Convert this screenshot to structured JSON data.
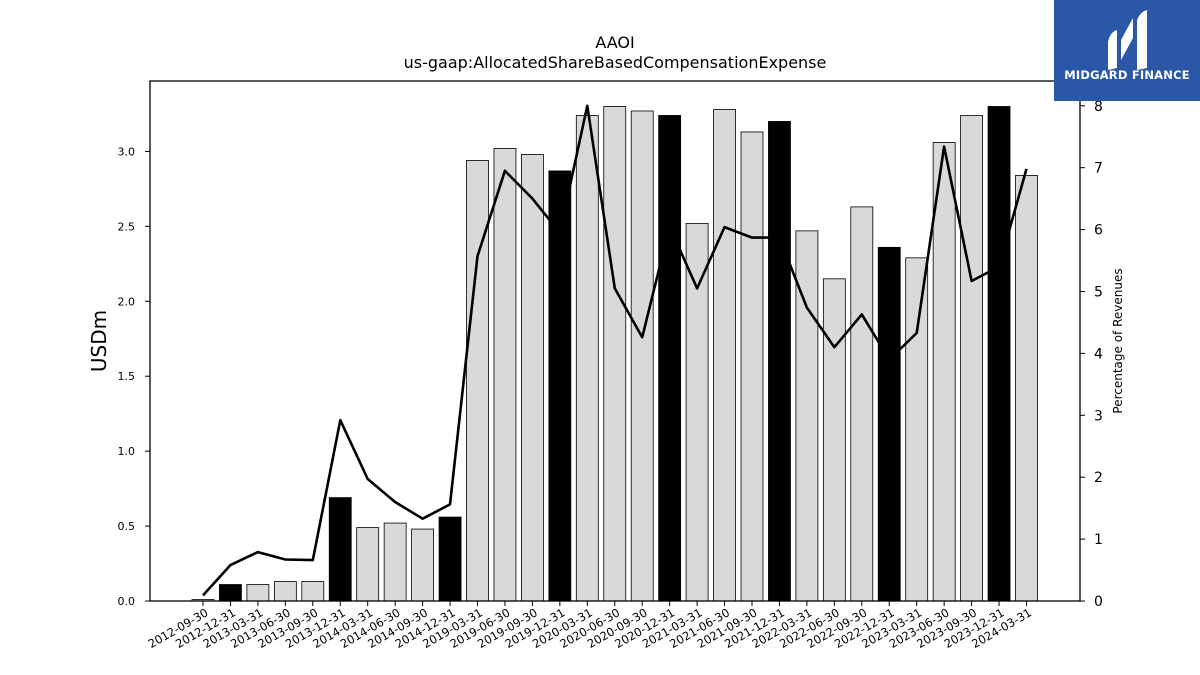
{
  "chart_data": {
    "type": "bar",
    "title": "AAOI",
    "subtitle": "us-gaap:AllocatedShareBasedCompensationExpense",
    "ylabel": "USDm",
    "y2label": "Percentage of Revenues",
    "ylim": [
      0,
      3.47
    ],
    "y2lim": [
      0,
      8.4
    ],
    "yticks": [
      "0.0",
      "0.5",
      "1.0",
      "1.5",
      "2.0",
      "2.5",
      "3.0"
    ],
    "y2ticks": [
      "0",
      "1",
      "2",
      "3",
      "4",
      "5",
      "6",
      "7",
      "8"
    ],
    "categories": [
      "2012-09-30",
      "2012-12-31",
      "2013-03-31",
      "2013-06-30",
      "2013-09-30",
      "2013-12-31",
      "2014-03-31",
      "2014-06-30",
      "2014-09-30",
      "2014-12-31",
      "2019-03-31",
      "2019-06-30",
      "2019-09-30",
      "2019-12-31",
      "2020-03-31",
      "2020-06-30",
      "2020-09-30",
      "2020-12-31",
      "2021-03-31",
      "2021-06-30",
      "2021-09-30",
      "2021-12-31",
      "2022-03-31",
      "2022-06-30",
      "2022-09-30",
      "2022-12-31",
      "2023-03-31",
      "2023-06-30",
      "2023-09-30",
      "2023-12-31",
      "2024-03-31"
    ],
    "series": [
      {
        "kind": "bar",
        "values": [
          0.01,
          0.11,
          0.11,
          0.13,
          0.13,
          0.69,
          0.49,
          0.52,
          0.48,
          0.56,
          2.94,
          3.02,
          2.98,
          2.87,
          3.24,
          3.3,
          3.27,
          3.24,
          2.52,
          3.28,
          3.13,
          3.2,
          2.47,
          2.15,
          2.63,
          2.36,
          2.29,
          3.06,
          3.24,
          3.3,
          2.84
        ],
        "highlight": [
          false,
          true,
          false,
          false,
          false,
          true,
          false,
          false,
          false,
          true,
          false,
          false,
          false,
          true,
          false,
          false,
          false,
          true,
          false,
          false,
          false,
          true,
          false,
          false,
          false,
          true,
          false,
          false,
          false,
          true,
          false
        ]
      },
      {
        "kind": "line",
        "axis": "right",
        "values": [
          0.09,
          0.58,
          0.79,
          0.67,
          0.66,
          2.92,
          1.97,
          1.6,
          1.33,
          1.56,
          5.57,
          6.95,
          6.5,
          5.95,
          8.0,
          5.05,
          4.26,
          6.05,
          5.05,
          6.04,
          5.87,
          5.87,
          4.74,
          4.1,
          4.63,
          3.9,
          4.33,
          7.34,
          5.17,
          5.4,
          6.98
        ]
      }
    ],
    "colors": {
      "bar": "#d9d9d9",
      "bar_highlight": "#000000",
      "line": "#000000"
    },
    "grid": false
  },
  "logo": {
    "text": "MIDGARD FINANCE",
    "background": "#2a57a8"
  }
}
